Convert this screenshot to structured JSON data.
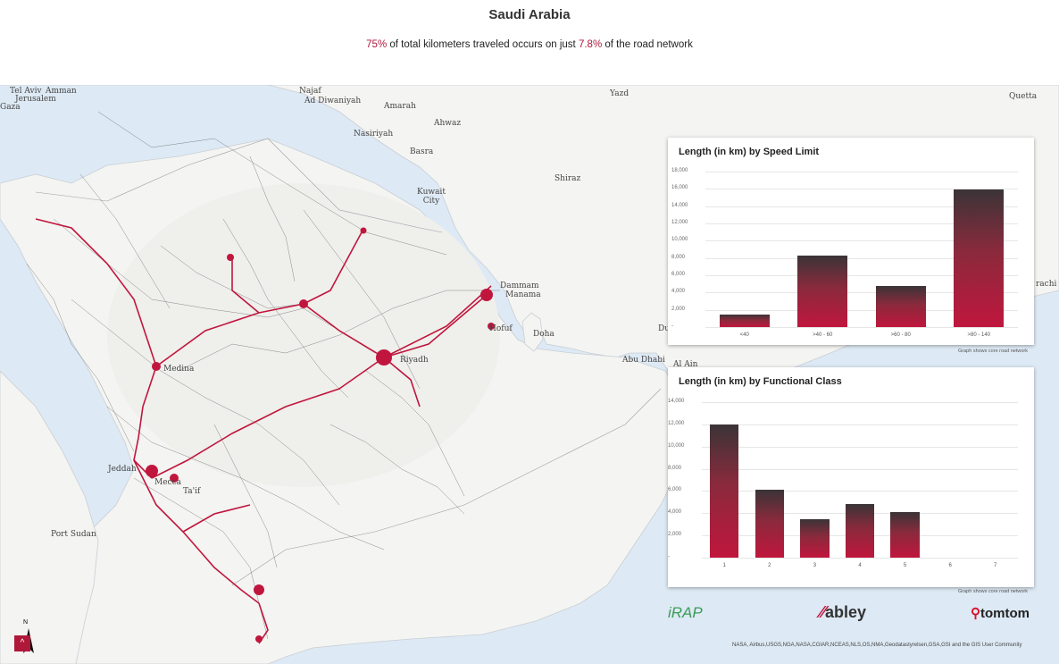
{
  "header": {
    "title": "Saudi Arabia",
    "subtitle_pct1": "75%",
    "subtitle_mid": " of total kilometers traveled occurs on just ",
    "subtitle_pct2": "7.8%",
    "subtitle_end": " of the road network"
  },
  "map": {
    "places": [
      "Tel Aviv",
      "Amman",
      "Jerusalem",
      "Gaza",
      "Najaf",
      "Ad Diwaniyah",
      "Amarah",
      "Yazd",
      "Quetta",
      "Ahwaz",
      "Nasiriyah",
      "Basra",
      "Shiraz",
      "Kuwait City",
      "Dammam",
      "Manama",
      "Hofuf",
      "Doha",
      "Du",
      "Abu Dhabi",
      "Al Ain",
      "Riyadh",
      "Medina",
      "Jeddah",
      "Mecca",
      "Ta'if",
      "Port Sudan",
      "rachi"
    ],
    "north_label": "N",
    "road_color": "#c0163d",
    "network_color": "#333333",
    "sea_color": "#dde9f4",
    "land_color": "#f4f4f2"
  },
  "speed_panel": {
    "title": "Length (in km) by Speed Limit",
    "note": "Graph shows core road network"
  },
  "class_panel": {
    "title": "Length (in km) by Functional Class",
    "note": "Graph shows core road network"
  },
  "chart_data": [
    {
      "type": "bar",
      "title": "Length (in km) by Speed Limit",
      "categories": [
        "<40",
        ">40 - 60",
        ">60 - 80",
        ">80 - 140"
      ],
      "values": [
        1500,
        8300,
        4800,
        15900
      ],
      "ylim": [
        0,
        18000
      ],
      "yticks": [
        "-",
        "2,000",
        "4,000",
        "6,000",
        "8,000",
        "10,000",
        "12,000",
        "14,000",
        "16,000",
        "18,000"
      ],
      "grid": true
    },
    {
      "type": "bar",
      "title": "Length (in km) by Functional Class",
      "categories": [
        "1",
        "2",
        "3",
        "4",
        "5",
        "6",
        "7"
      ],
      "values": [
        12000,
        6100,
        3500,
        4800,
        4100,
        0,
        0
      ],
      "ylim": [
        0,
        14000
      ],
      "yticks": [
        "-",
        "2,000",
        "4,000",
        "6,000",
        "8,000",
        "10,000",
        "12,000",
        "14,000"
      ],
      "grid": true
    }
  ],
  "footer": {
    "irap": "iRAP",
    "abley": "abley",
    "tomtom": "tomtom",
    "attribution": "NASA, Airbus,USGS,NGA,NASA,CGIAR,NCEAS,NLS,OS,NMA,Geodatastyrelsen,GSA,GSI and the GIS User Community"
  }
}
